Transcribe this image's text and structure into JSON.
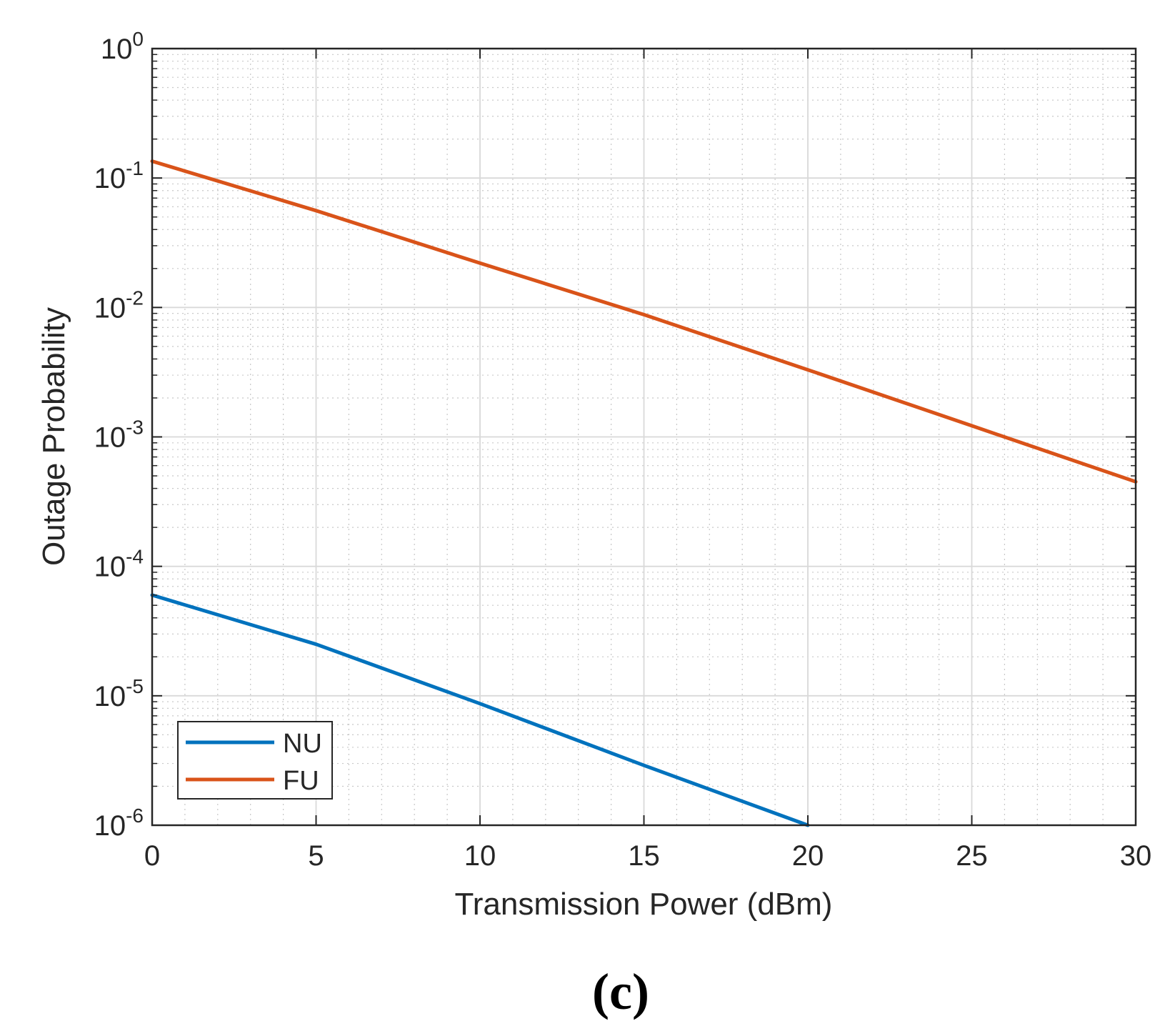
{
  "chart_data": {
    "type": "line",
    "title": "",
    "xlabel": "Transmission Power (dBm)",
    "ylabel": "Outage Probability",
    "xlim": [
      0,
      30
    ],
    "ylim": [
      1e-06,
      1
    ],
    "yscale": "log",
    "x_ticks": [
      0,
      5,
      10,
      15,
      20,
      25,
      30
    ],
    "x_tick_labels": [
      "0",
      "5",
      "10",
      "15",
      "20",
      "25",
      "30"
    ],
    "y_ticks": [
      {
        "base": "10",
        "exp": "0",
        "value": 1
      },
      {
        "base": "10",
        "exp": "-1",
        "value": 0.1
      },
      {
        "base": "10",
        "exp": "-2",
        "value": 0.01
      },
      {
        "base": "10",
        "exp": "-3",
        "value": 0.001
      },
      {
        "base": "10",
        "exp": "-4",
        "value": 0.0001
      },
      {
        "base": "10",
        "exp": "-5",
        "value": 1e-05
      },
      {
        "base": "10",
        "exp": "-6",
        "value": 1e-06
      }
    ],
    "grid": true,
    "minor_grid": true,
    "legend_position": "bottom-left",
    "series": [
      {
        "name": "NU",
        "color": "#0072BD",
        "x": [
          0,
          5,
          10,
          15,
          20
        ],
        "values": [
          6e-05,
          2.5e-05,
          8.7e-06,
          2.9e-06,
          1e-06
        ]
      },
      {
        "name": "FU",
        "color": "#D95319",
        "x": [
          0,
          5,
          10,
          15,
          20,
          25,
          30
        ],
        "values": [
          0.135,
          0.056,
          0.022,
          0.0088,
          0.0033,
          0.00122,
          0.00045
        ]
      }
    ]
  },
  "caption": "(c)"
}
